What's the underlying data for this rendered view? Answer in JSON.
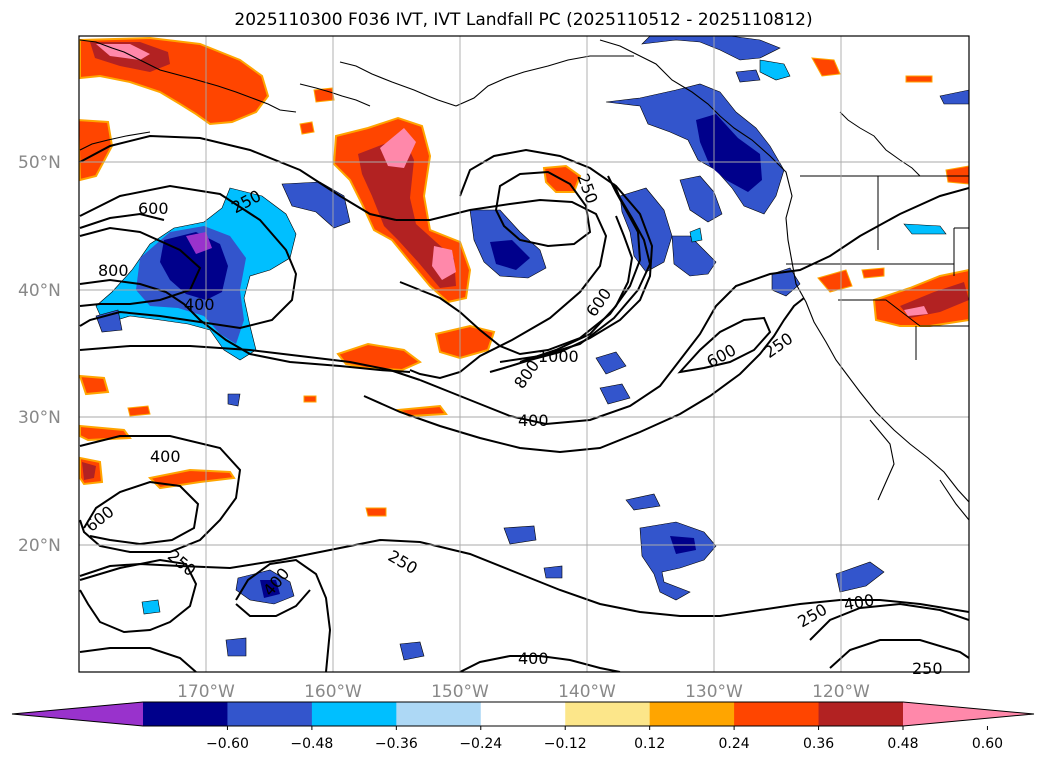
{
  "title": "2025110300 F036 IVT, IVT Landfall PC (2025110512 - 2025110812)",
  "lat_labels": [
    "50°N",
    "40°N",
    "30°N",
    "20°N"
  ],
  "lon_labels": [
    "170°W",
    "160°W",
    "150°W",
    "140°W",
    "130°W",
    "120°W"
  ],
  "contour_labels": [
    "600",
    "250",
    "800",
    "400",
    "250",
    "600",
    "1000",
    "800",
    "600",
    "250",
    "400",
    "400",
    "600",
    "250",
    "250",
    "400",
    "250",
    "400",
    "400",
    "250"
  ],
  "colorbar": {
    "ticks": [
      "−0.60",
      "−0.48",
      "−0.36",
      "−0.24",
      "−0.12",
      "0.12",
      "0.24",
      "0.36",
      "0.48",
      "0.60"
    ],
    "colors": [
      "#9932cc",
      "#00008b",
      "#3355cc",
      "#00bfff",
      "#add8f5",
      "#ffffff",
      "#fce68a",
      "#ffa500",
      "#ff4500",
      "#b22222",
      "#ff88aa"
    ]
  }
}
